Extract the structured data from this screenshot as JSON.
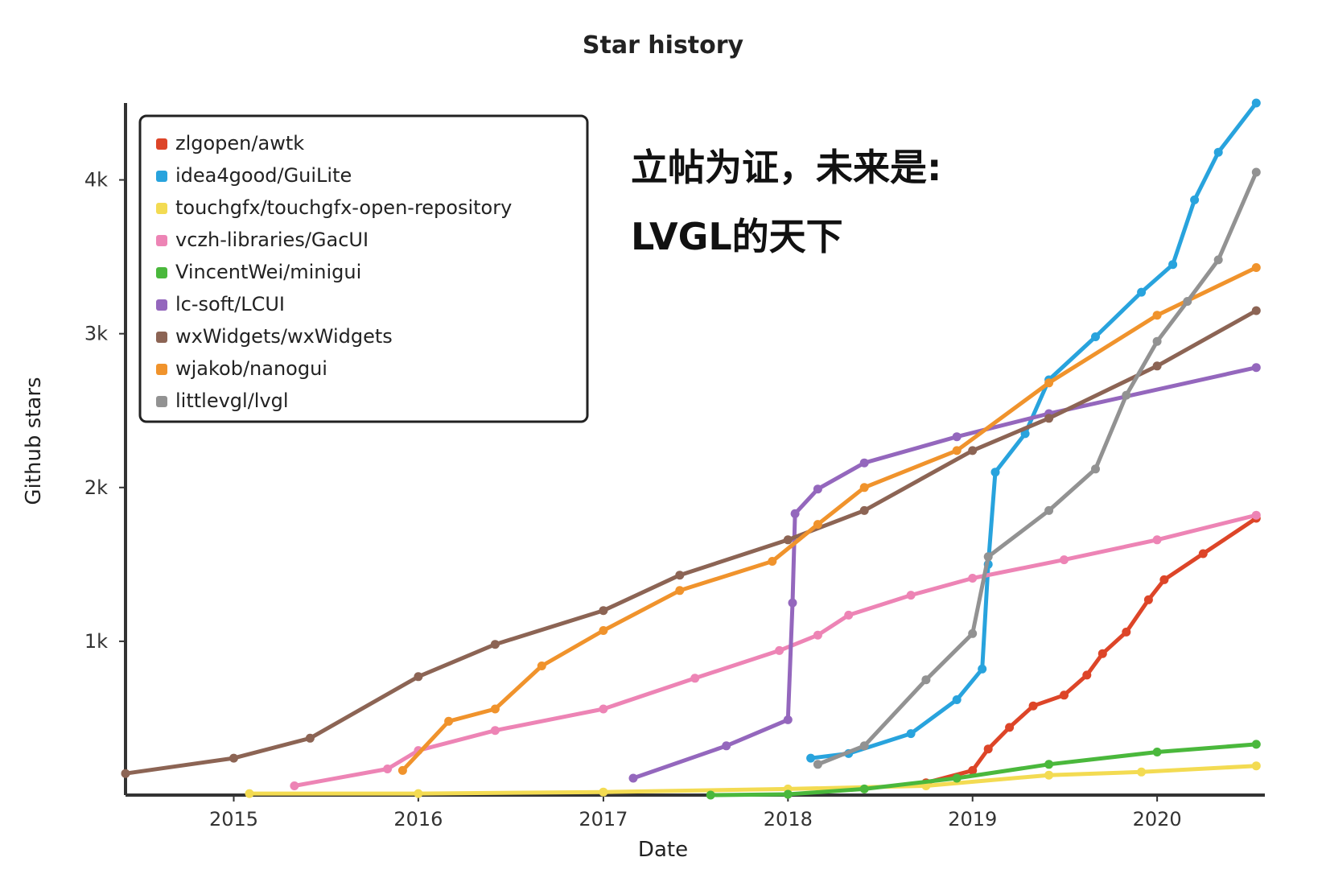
{
  "chart_data": {
    "type": "line",
    "title": "Star history",
    "xlabel": "Date",
    "ylabel": "Github stars",
    "x_range": [
      "2014-06",
      "2020-08"
    ],
    "ylim": [
      0,
      4500
    ],
    "x_ticks": [
      "2015",
      "2016",
      "2017",
      "2018",
      "2019",
      "2020"
    ],
    "y_ticks": [
      {
        "value": 1000,
        "label": "1k"
      },
      {
        "value": 2000,
        "label": "2k"
      },
      {
        "value": 3000,
        "label": "3k"
      },
      {
        "value": 4000,
        "label": "4k"
      }
    ],
    "grid": false,
    "legend_position": "top-left",
    "annotation": [
      "立帖为证，未来是:",
      "LVGL的天下"
    ],
    "series": [
      {
        "name": "zlgopen/awtk",
        "color": "#dd4528",
        "points": [
          {
            "x": "2018-10-01",
            "y": 80
          },
          {
            "x": "2019-01-01",
            "y": 160
          },
          {
            "x": "2019-02-01",
            "y": 300
          },
          {
            "x": "2019-03-15",
            "y": 440
          },
          {
            "x": "2019-05-01",
            "y": 580
          },
          {
            "x": "2019-07-01",
            "y": 650
          },
          {
            "x": "2019-08-15",
            "y": 780
          },
          {
            "x": "2019-09-15",
            "y": 920
          },
          {
            "x": "2019-11-01",
            "y": 1060
          },
          {
            "x": "2019-12-15",
            "y": 1270
          },
          {
            "x": "2020-01-15",
            "y": 1400
          },
          {
            "x": "2020-04-01",
            "y": 1570
          },
          {
            "x": "2020-07-15",
            "y": 1800
          }
        ]
      },
      {
        "name": "idea4good/GuiLite",
        "color": "#28a3dd",
        "points": [
          {
            "x": "2018-02-15",
            "y": 240
          },
          {
            "x": "2018-05-01",
            "y": 270
          },
          {
            "x": "2018-09-01",
            "y": 400
          },
          {
            "x": "2018-12-01",
            "y": 620
          },
          {
            "x": "2019-01-20",
            "y": 820
          },
          {
            "x": "2019-02-01",
            "y": 1500
          },
          {
            "x": "2019-02-15",
            "y": 2100
          },
          {
            "x": "2019-04-15",
            "y": 2350
          },
          {
            "x": "2019-06-01",
            "y": 2700
          },
          {
            "x": "2019-09-01",
            "y": 2980
          },
          {
            "x": "2019-12-01",
            "y": 3270
          },
          {
            "x": "2020-02-01",
            "y": 3450
          },
          {
            "x": "2020-03-15",
            "y": 3870
          },
          {
            "x": "2020-05-01",
            "y": 4180
          },
          {
            "x": "2020-07-15",
            "y": 4500
          }
        ]
      },
      {
        "name": "touchgfx/touchgfx-open-repository",
        "color": "#f3db52",
        "points": [
          {
            "x": "2015-02-01",
            "y": 10
          },
          {
            "x": "2016-01-01",
            "y": 10
          },
          {
            "x": "2017-01-01",
            "y": 20
          },
          {
            "x": "2018-01-01",
            "y": 40
          },
          {
            "x": "2018-10-01",
            "y": 60
          },
          {
            "x": "2019-06-01",
            "y": 130
          },
          {
            "x": "2019-12-01",
            "y": 150
          },
          {
            "x": "2020-07-15",
            "y": 190
          }
        ]
      },
      {
        "name": "vczh-libraries/GacUI",
        "color": "#ed84b5",
        "points": [
          {
            "x": "2015-05-01",
            "y": 60
          },
          {
            "x": "2015-11-01",
            "y": 170
          },
          {
            "x": "2016-01-01",
            "y": 290
          },
          {
            "x": "2016-06-01",
            "y": 420
          },
          {
            "x": "2017-01-01",
            "y": 560
          },
          {
            "x": "2017-07-01",
            "y": 760
          },
          {
            "x": "2017-12-15",
            "y": 940
          },
          {
            "x": "2018-03-01",
            "y": 1040
          },
          {
            "x": "2018-05-01",
            "y": 1170
          },
          {
            "x": "2018-09-01",
            "y": 1300
          },
          {
            "x": "2019-01-01",
            "y": 1410
          },
          {
            "x": "2019-07-01",
            "y": 1530
          },
          {
            "x": "2020-01-01",
            "y": 1660
          },
          {
            "x": "2020-07-15",
            "y": 1820
          }
        ]
      },
      {
        "name": "VincentWei/minigui",
        "color": "#4ab83c",
        "points": [
          {
            "x": "2017-08-01",
            "y": 0
          },
          {
            "x": "2018-01-01",
            "y": 5
          },
          {
            "x": "2018-06-01",
            "y": 40
          },
          {
            "x": "2018-12-01",
            "y": 110
          },
          {
            "x": "2019-06-01",
            "y": 200
          },
          {
            "x": "2020-01-01",
            "y": 280
          },
          {
            "x": "2020-07-15",
            "y": 330
          }
        ]
      },
      {
        "name": "lc-soft/LCUI",
        "color": "#9467bd",
        "points": [
          {
            "x": "2017-03-01",
            "y": 110
          },
          {
            "x": "2017-09-01",
            "y": 320
          },
          {
            "x": "2018-01-01",
            "y": 490
          },
          {
            "x": "2018-01-10",
            "y": 1250
          },
          {
            "x": "2018-01-15",
            "y": 1830
          },
          {
            "x": "2018-03-01",
            "y": 1990
          },
          {
            "x": "2018-06-01",
            "y": 2160
          },
          {
            "x": "2018-12-01",
            "y": 2330
          },
          {
            "x": "2019-06-01",
            "y": 2480
          },
          {
            "x": "2020-07-15",
            "y": 2780
          }
        ]
      },
      {
        "name": "wxWidgets/wxWidgets",
        "color": "#8c6454",
        "points": [
          {
            "x": "2014-06-01",
            "y": 140
          },
          {
            "x": "2015-01-01",
            "y": 240
          },
          {
            "x": "2015-06-01",
            "y": 370
          },
          {
            "x": "2016-01-01",
            "y": 770
          },
          {
            "x": "2016-06-01",
            "y": 980
          },
          {
            "x": "2017-01-01",
            "y": 1200
          },
          {
            "x": "2017-06-01",
            "y": 1430
          },
          {
            "x": "2018-01-01",
            "y": 1660
          },
          {
            "x": "2018-06-01",
            "y": 1850
          },
          {
            "x": "2019-01-01",
            "y": 2240
          },
          {
            "x": "2019-06-01",
            "y": 2450
          },
          {
            "x": "2020-01-01",
            "y": 2790
          },
          {
            "x": "2020-07-15",
            "y": 3150
          }
        ]
      },
      {
        "name": "wjakob/nanogui",
        "color": "#f0932c",
        "points": [
          {
            "x": "2015-12-01",
            "y": 160
          },
          {
            "x": "2016-03-01",
            "y": 480
          },
          {
            "x": "2016-06-01",
            "y": 560
          },
          {
            "x": "2016-09-01",
            "y": 840
          },
          {
            "x": "2017-01-01",
            "y": 1070
          },
          {
            "x": "2017-06-01",
            "y": 1330
          },
          {
            "x": "2017-12-01",
            "y": 1520
          },
          {
            "x": "2018-03-01",
            "y": 1760
          },
          {
            "x": "2018-06-01",
            "y": 2000
          },
          {
            "x": "2018-12-01",
            "y": 2240
          },
          {
            "x": "2019-06-01",
            "y": 2680
          },
          {
            "x": "2020-01-01",
            "y": 3120
          },
          {
            "x": "2020-07-15",
            "y": 3430
          }
        ]
      },
      {
        "name": "littlevgl/lvgl",
        "color": "#929292",
        "points": [
          {
            "x": "2018-03-01",
            "y": 200
          },
          {
            "x": "2018-06-01",
            "y": 320
          },
          {
            "x": "2018-10-01",
            "y": 750
          },
          {
            "x": "2019-01-01",
            "y": 1050
          },
          {
            "x": "2019-02-01",
            "y": 1550
          },
          {
            "x": "2019-06-01",
            "y": 1850
          },
          {
            "x": "2019-09-01",
            "y": 2120
          },
          {
            "x": "2019-11-01",
            "y": 2600
          },
          {
            "x": "2020-01-01",
            "y": 2950
          },
          {
            "x": "2020-03-01",
            "y": 3210
          },
          {
            "x": "2020-05-01",
            "y": 3480
          },
          {
            "x": "2020-07-15",
            "y": 4050
          }
        ]
      }
    ]
  }
}
